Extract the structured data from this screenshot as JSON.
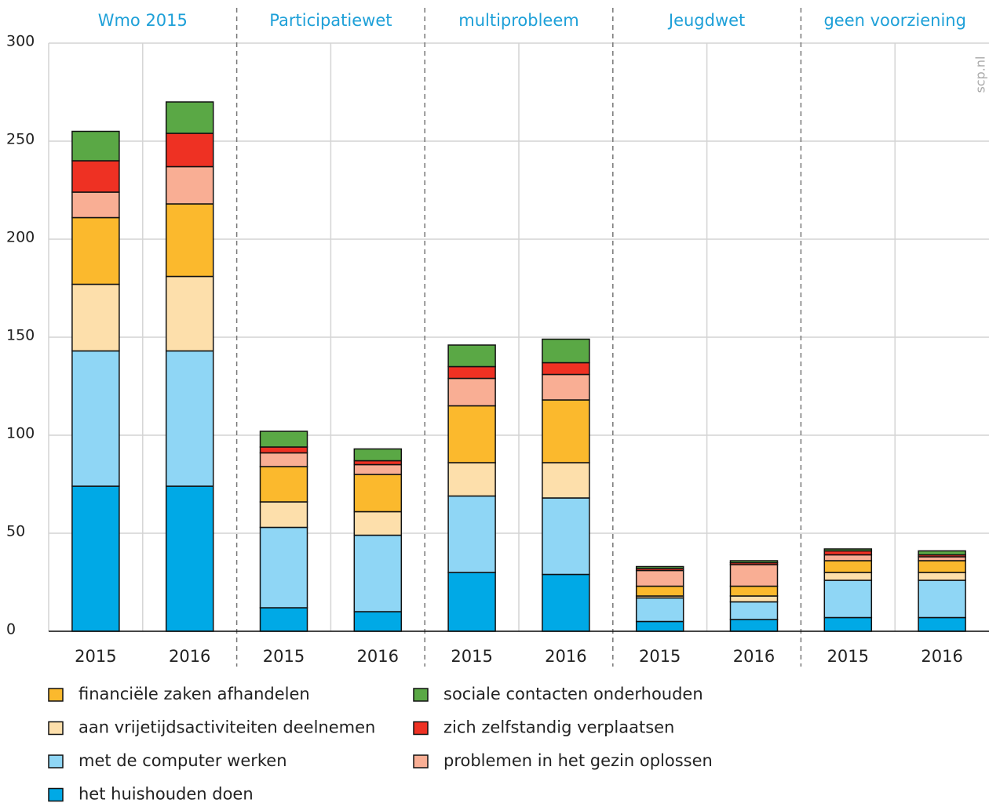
{
  "chart_data": {
    "type": "stacked_bar",
    "groups": [
      "Wmo 2015",
      "Participatiewet",
      "multiprobleem",
      "Jeugdwet",
      "geen voorziening"
    ],
    "categories": [
      "2015",
      "2016",
      "2015",
      "2016",
      "2015",
      "2016",
      "2015",
      "2016",
      "2015",
      "2016"
    ],
    "source": "scp.nl",
    "ylim": [
      0,
      300
    ],
    "yticks": [
      0,
      50,
      100,
      150,
      200,
      250,
      300
    ],
    "grid": true,
    "series": [
      {
        "name": "het huishouden doen",
        "color": "#00a9e6",
        "values": [
          74,
          74,
          12,
          10,
          30,
          29,
          5,
          6,
          7,
          7
        ]
      },
      {
        "name": "met de computer werken",
        "color": "#8fd6f5",
        "values": [
          69,
          69,
          41,
          39,
          39,
          39,
          12,
          9,
          19,
          19
        ]
      },
      {
        "name": "aan vrijetijdsactiviteiten deelnemen",
        "color": "#fddfab",
        "values": [
          34,
          38,
          13,
          12,
          17,
          18,
          1,
          3,
          4,
          4
        ]
      },
      {
        "name": "financiële zaken afhandelen",
        "color": "#fbb92d",
        "values": [
          34,
          37,
          18,
          19,
          29,
          32,
          5,
          5,
          6,
          6
        ]
      },
      {
        "name": "problemen in het gezin oplossen",
        "color": "#f9ae94",
        "values": [
          13,
          19,
          7,
          5,
          14,
          13,
          8,
          11,
          3,
          2
        ]
      },
      {
        "name": "zich zelfstandig verplaatsen",
        "color": "#ee3123",
        "values": [
          16,
          17,
          3,
          2,
          6,
          6,
          1,
          1,
          2,
          1
        ]
      },
      {
        "name": "sociale contacten onderhouden",
        "color": "#5aa845",
        "values": [
          15,
          16,
          8,
          6,
          11,
          12,
          1,
          1,
          1,
          2
        ]
      }
    ]
  }
}
